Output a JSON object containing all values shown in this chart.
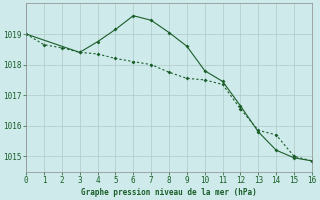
{
  "title": "Graphe pression niveau de la mer (hPa)",
  "bg_color": "#ceeaea",
  "line_color": "#1a5e2a",
  "grid_color": "#b0c8c8",
  "series1": {
    "x": [
      0,
      1,
      2,
      3,
      4,
      5,
      6,
      7,
      8,
      9,
      10,
      11,
      12,
      13,
      14,
      15,
      16
    ],
    "y": [
      1019.0,
      1018.65,
      1018.55,
      1018.4,
      1018.35,
      1018.2,
      1018.1,
      1018.0,
      1017.75,
      1017.55,
      1017.5,
      1017.35,
      1016.55,
      1015.85,
      1015.7,
      1015.0,
      1014.85
    ]
  },
  "series2": {
    "x": [
      0,
      3,
      4,
      5,
      6,
      7,
      8,
      9,
      10,
      11,
      12,
      13,
      14,
      15,
      16
    ],
    "y": [
      1019.0,
      1018.4,
      1018.75,
      1019.15,
      1019.6,
      1019.45,
      1019.05,
      1018.6,
      1017.8,
      1017.45,
      1016.65,
      1015.8,
      1015.2,
      1014.95,
      1014.85
    ]
  },
  "xlim": [
    0,
    16
  ],
  "ylim": [
    1014.5,
    1020.0
  ],
  "yticks": [
    1015,
    1016,
    1017,
    1018,
    1019
  ],
  "xticks": [
    0,
    1,
    2,
    3,
    4,
    5,
    6,
    7,
    8,
    9,
    10,
    11,
    12,
    13,
    14,
    15,
    16
  ]
}
